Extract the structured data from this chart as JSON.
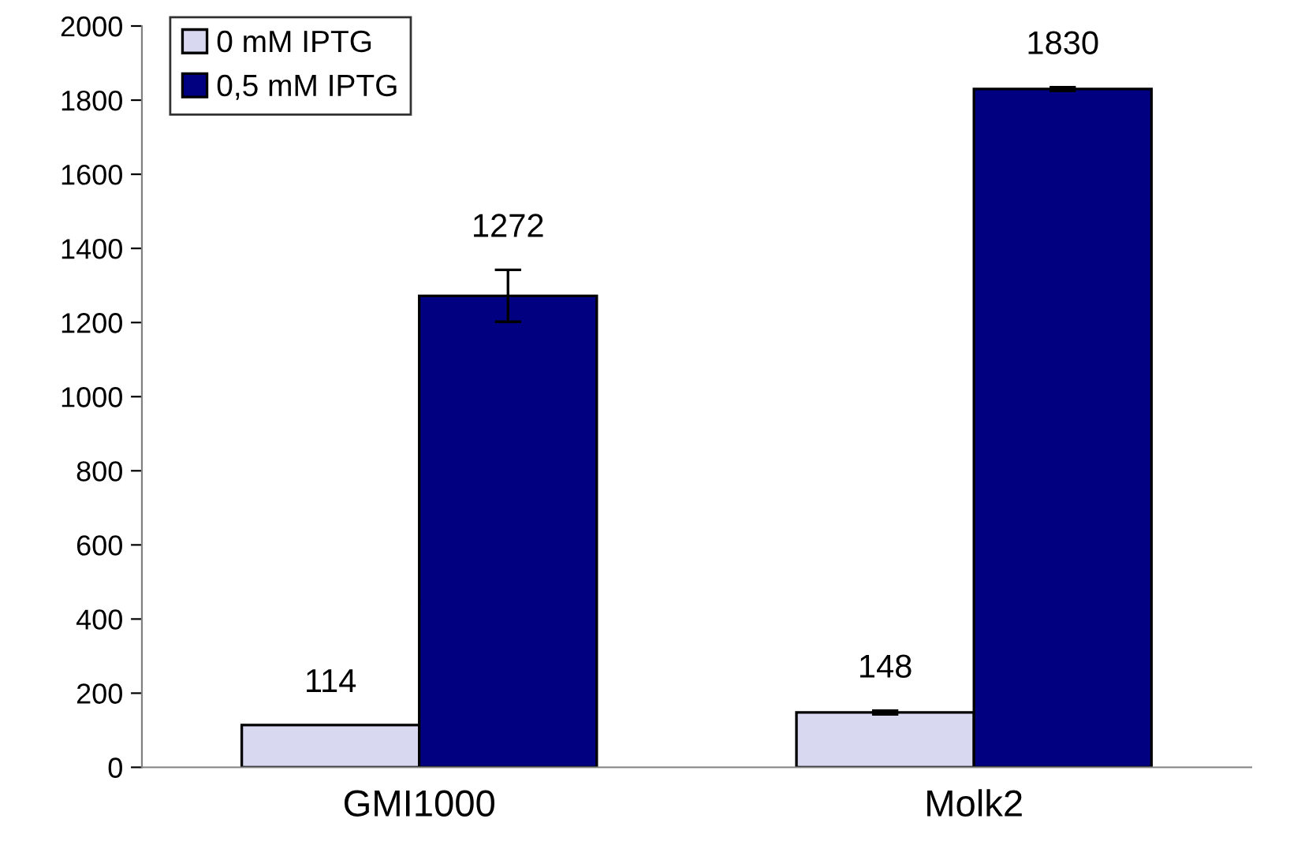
{
  "chart_data": {
    "type": "bar",
    "categories": [
      "GMI1000",
      "Molk2"
    ],
    "series": [
      {
        "name": "0 mM IPTG",
        "color": "#d8d8f0",
        "values": [
          114,
          148
        ],
        "errors": [
          null,
          5
        ]
      },
      {
        "name": "0,5 mM IPTG",
        "color": "#000080",
        "values": [
          1272,
          1830
        ],
        "errors": [
          70,
          5
        ]
      }
    ],
    "ylim": [
      0,
      2000
    ],
    "yticks": [
      0,
      200,
      400,
      600,
      800,
      1000,
      1200,
      1400,
      1600,
      1800,
      2000
    ],
    "data_labels": true,
    "legend": "top left",
    "grid": false
  }
}
